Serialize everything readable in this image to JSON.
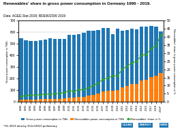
{
  "chart_data": {
    "type": "bar",
    "title": "Renewables' share in gross power consumption in Germany 1990 - 2019.",
    "subtitle": "Data: AGEE-Stat 2019; BDEW/ZSW 2019",
    "footnote": "*H1 2019 data by 25Jul/2019 preliminary",
    "annotations": [
      "CLEAN",
      "ENERGY",
      "WIRE"
    ],
    "categories": [
      "1990",
      "1991",
      "1992",
      "1993",
      "1994",
      "1995",
      "1996",
      "1997",
      "1998",
      "1999",
      "2000",
      "2001",
      "2002",
      "2003",
      "2004",
      "2005",
      "2006",
      "2007",
      "2008",
      "2009",
      "2010",
      "2011",
      "2012",
      "2013",
      "2014",
      "2015",
      "2016",
      "2017",
      "2018",
      "2019*"
    ],
    "y_label": "Gross power consumption in TWh",
    "y2_label": "Renewables' share in gross power consumption in %",
    "ylim": [
      0,
      700
    ],
    "yticks": [
      0,
      100,
      200,
      300,
      400,
      500,
      600,
      700
    ],
    "y2lim": [
      0,
      50
    ],
    "y2ticks": [
      0,
      5,
      10,
      15,
      20,
      25,
      30,
      35,
      40,
      45,
      50
    ],
    "grid": true,
    "legend": "lower center",
    "stacked": false,
    "series": [
      {
        "name": "Gross power consumption in TWh",
        "type": "bar",
        "values": [
          549,
          531,
          526,
          525,
          528,
          537,
          547,
          541,
          542,
          543,
          577,
          578,
          583,
          597,
          611,
          614,
          621,
          636,
          636,
          582,
          633,
          613,
          617,
          633,
          627,
          648,
          648,
          655,
          651,
          607
        ]
      },
      {
        "name": "Renewables power consumption in TWh",
        "type": "bar",
        "values": [
          19,
          21,
          22,
          22,
          23,
          26,
          26,
          27,
          28,
          32,
          39,
          38,
          44,
          45,
          54,
          62,
          72,
          89,
          93,
          94,
          102,
          123,
          136,
          152,
          157,
          187,
          189,
          216,
          225,
          251
        ]
      },
      {
        "name": "Renewables' share in %",
        "type": "line",
        "axis": "y2",
        "marker": "o",
        "values": [
          3.4,
          3.9,
          4.2,
          4.3,
          4.4,
          4.9,
          4.7,
          5.0,
          5.2,
          5.9,
          6.8,
          6.6,
          7.5,
          7.5,
          8.8,
          10.0,
          11.6,
          14.0,
          14.7,
          16.1,
          16.1,
          20.1,
          22.0,
          24.1,
          25.0,
          28.9,
          29.2,
          33.0,
          34.6,
          41.4
        ]
      }
    ]
  }
}
